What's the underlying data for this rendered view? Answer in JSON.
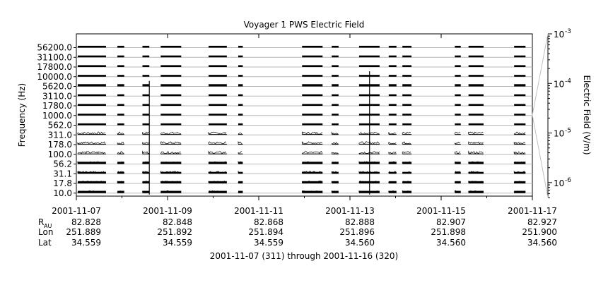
{
  "chart_data": {
    "type": "line",
    "title": "Voyager 1 PWS Electric Field",
    "ylabel": "Frequency (Hz)",
    "y2label": "Electric Field (V/m)",
    "channels": [
      "56200.0",
      "31100.0",
      "17800.0",
      "10000.0",
      "5620.0",
      "3110.0",
      "1780.0",
      "1000.0",
      "562.0",
      "311.0",
      "178.0",
      "100.0",
      "56.2",
      "31.1",
      "17.8",
      "10.0"
    ],
    "x_ticks": [
      "2001-11-07",
      "2001-11-09",
      "2001-11-11",
      "2001-11-13",
      "2001-11-15",
      "2001-11-17"
    ],
    "xlim": [
      "2001-11-07",
      "2001-11-17"
    ],
    "y2_ticks": [
      {
        "base": "10",
        "exp": "-3",
        "value": 0.001
      },
      {
        "base": "10",
        "exp": "-4",
        "value": 0.0001
      },
      {
        "base": "10",
        "exp": "-5",
        "value": 1e-05
      },
      {
        "base": "10",
        "exp": "-6",
        "value": 1e-06
      }
    ],
    "y2_scale": "log",
    "grid": true,
    "data_intervals_days": [
      [
        0.03,
        0.65
      ],
      [
        0.9,
        1.05
      ],
      [
        1.45,
        1.6
      ],
      [
        1.85,
        2.3
      ],
      [
        2.9,
        3.3
      ],
      [
        3.55,
        3.65
      ],
      [
        4.95,
        5.4
      ],
      [
        5.6,
        5.75
      ],
      [
        6.2,
        6.65
      ],
      [
        6.85,
        7.02
      ],
      [
        7.15,
        7.35
      ],
      [
        8.3,
        8.43
      ],
      [
        8.6,
        8.93
      ],
      [
        9.6,
        9.85
      ]
    ],
    "spikes_days": [
      1.6,
      6.43
    ],
    "ephemeris": {
      "rows": [
        {
          "label": "R",
          "sub": "AU",
          "values": [
            "82.828",
            "82.848",
            "82.868",
            "82.888",
            "82.907",
            "82.927"
          ]
        },
        {
          "label": "Lon",
          "sub": "",
          "values": [
            "251.889",
            "251.892",
            "251.894",
            "251.896",
            "251.898",
            "251.900"
          ]
        },
        {
          "label": "Lat",
          "sub": "",
          "values": [
            "34.559",
            "34.559",
            "34.559",
            "34.560",
            "34.560",
            "34.560"
          ]
        }
      ]
    },
    "footer": "2001-11-07 (311) through 2001-11-16 (320)"
  }
}
